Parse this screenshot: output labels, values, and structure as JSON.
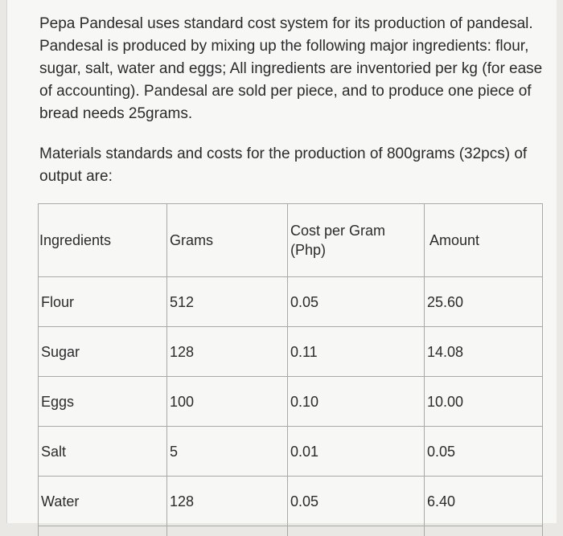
{
  "intro": {
    "paragraph1": "Pepa Pandesal uses standard cost system for its production of pandesal. Pandesal is produced by mixing up the following major ingredients: flour, sugar, salt, water and eggs; All ingredients are inventoried per kg (for ease of accounting). Pandesal are sold per piece, and to produce one piece of bread needs 25grams.",
    "paragraph2": "Materials standards and costs for the production of 800grams (32pcs) of output are:"
  },
  "table": {
    "headers": {
      "ingredients": "Ingredients",
      "grams": "Grams",
      "cost_per_gram": "Cost per Gram (Php)",
      "amount": "Amount"
    },
    "rows": [
      {
        "ingredient": "Flour",
        "grams": "512",
        "cost": "0.05",
        "amount": "25.60"
      },
      {
        "ingredient": "Sugar",
        "grams": "128",
        "cost": "0.11",
        "amount": "14.08"
      },
      {
        "ingredient": "Eggs",
        "grams": "100",
        "cost": "0.10",
        "amount": "10.00"
      },
      {
        "ingredient": "Salt",
        "grams": "5",
        "cost": "0.01",
        "amount": "0.05"
      },
      {
        "ingredient": "Water",
        "grams": "128",
        "cost": "0.05",
        "amount": "6.40"
      }
    ]
  }
}
